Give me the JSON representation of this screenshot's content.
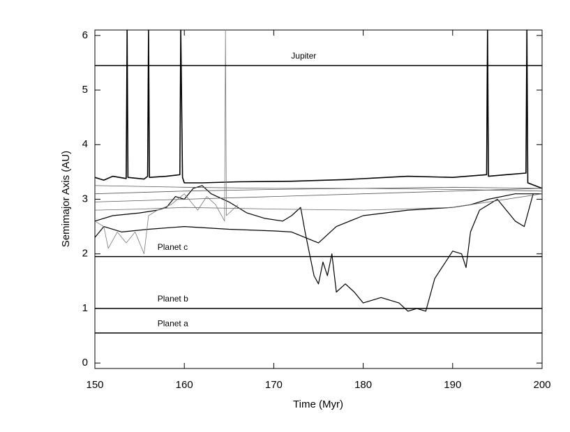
{
  "chart_data": {
    "type": "line",
    "x_label": "Time (Myr)",
    "y_label": "Semimajor Axis (AU)",
    "xlim": [
      150,
      200
    ],
    "ylim": [
      -0.1,
      6.1
    ],
    "xticks": [
      150,
      160,
      170,
      180,
      190,
      200
    ],
    "yticks": [
      0,
      1,
      2,
      3,
      4,
      5,
      6
    ],
    "hlines": [
      {
        "label": "Jupiter",
        "value": 5.45,
        "label_x": 154
      },
      {
        "label": "Planet c",
        "value": 1.95,
        "label_x": 157
      },
      {
        "label": "Planet b",
        "value": 1.0,
        "label_x": 157
      },
      {
        "label": "Planet a",
        "value": 0.55,
        "label_x": 157
      }
    ],
    "series": [
      {
        "color": "#000000",
        "width": 1.6,
        "x": [
          150,
          151,
          152,
          153.5,
          153.6,
          153.7,
          155.5,
          155.9,
          156,
          156.1,
          158,
          159.5,
          159.6,
          159.8,
          160,
          162,
          166,
          172,
          178,
          185,
          190,
          193.8,
          193.9,
          194,
          196,
          198.2,
          198.3,
          198.4,
          200
        ],
        "values": [
          3.4,
          3.35,
          3.42,
          3.38,
          6.1,
          3.4,
          3.37,
          3.42,
          6.1,
          3.4,
          3.42,
          3.45,
          6.1,
          3.4,
          3.3,
          3.3,
          3.32,
          3.33,
          3.36,
          3.42,
          3.4,
          3.45,
          6.1,
          3.42,
          3.45,
          3.48,
          6.1,
          3.3,
          3.2
        ]
      },
      {
        "color": "#000000",
        "width": 1.2,
        "x": [
          150,
          152,
          155,
          157,
          158,
          159,
          160,
          161,
          162,
          163,
          165,
          167,
          169,
          171,
          172,
          173,
          173.5,
          174,
          174.5,
          175,
          175.5,
          176,
          176.5,
          177,
          178,
          179,
          180,
          182,
          184,
          185,
          186,
          187,
          188,
          189,
          190,
          191,
          191.5,
          192,
          193,
          195,
          196,
          197,
          198,
          199
        ],
        "values": [
          2.6,
          2.7,
          2.75,
          2.8,
          2.85,
          3.05,
          3.0,
          3.2,
          3.25,
          3.1,
          2.95,
          2.75,
          2.65,
          2.6,
          2.7,
          2.85,
          2.4,
          2.0,
          1.6,
          1.45,
          1.85,
          1.6,
          2.0,
          1.3,
          1.45,
          1.3,
          1.1,
          1.2,
          1.1,
          0.95,
          1.0,
          0.95,
          1.55,
          1.8,
          2.05,
          2.0,
          1.75,
          2.4,
          2.8,
          3.0,
          2.8,
          2.6,
          2.5,
          3.1
        ]
      },
      {
        "color": "#000000",
        "width": 1.2,
        "x": [
          150,
          151,
          153,
          156,
          160,
          165,
          170,
          172,
          173.5,
          175,
          176,
          177,
          180,
          185,
          190,
          192,
          194,
          197,
          200
        ],
        "values": [
          2.3,
          2.5,
          2.4,
          2.45,
          2.5,
          2.45,
          2.42,
          2.4,
          2.3,
          2.2,
          2.35,
          2.5,
          2.7,
          2.8,
          2.85,
          2.9,
          3.0,
          3.1,
          3.1
        ]
      },
      {
        "color": "#555555",
        "width": 0.8,
        "x": [
          150,
          160,
          170,
          180,
          190,
          200
        ],
        "values": [
          3.25,
          3.22,
          3.2,
          3.2,
          3.18,
          3.15
        ]
      },
      {
        "color": "#555555",
        "width": 0.8,
        "x": [
          150,
          160,
          170,
          180,
          190,
          200
        ],
        "values": [
          3.1,
          3.15,
          3.18,
          3.2,
          3.22,
          3.2
        ]
      },
      {
        "color": "#555555",
        "width": 0.8,
        "x": [
          150,
          160,
          170,
          180,
          190,
          200
        ],
        "values": [
          2.95,
          3.0,
          3.05,
          3.1,
          3.15,
          3.2
        ]
      },
      {
        "color": "#666666",
        "width": 0.8,
        "x": [
          150,
          155,
          160,
          170,
          180,
          190,
          200
        ],
        "values": [
          2.8,
          2.82,
          2.85,
          2.82,
          2.8,
          2.85,
          3.1
        ]
      },
      {
        "color": "#777777",
        "width": 0.8,
        "x": [
          150,
          151,
          151.5,
          152.5,
          153.5,
          154.5,
          155.5,
          156,
          157,
          158.5,
          160,
          161.5,
          162.5,
          163.5,
          164.5,
          164.6,
          164.7,
          166
        ],
        "values": [
          2.6,
          2.5,
          2.1,
          2.4,
          2.2,
          2.4,
          2.0,
          2.7,
          2.8,
          2.9,
          3.1,
          2.8,
          3.05,
          2.9,
          2.6,
          6.1,
          2.7,
          2.9
        ]
      }
    ]
  }
}
